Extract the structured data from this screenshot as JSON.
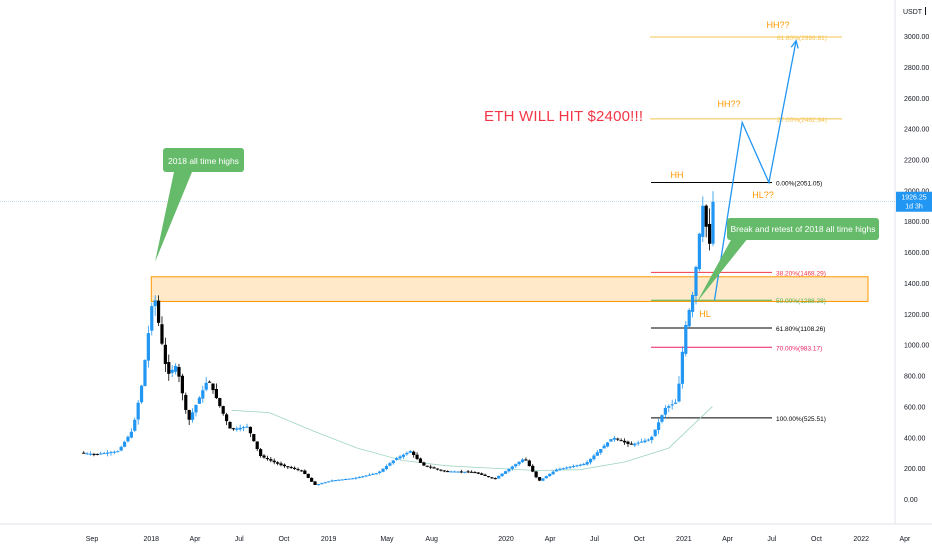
{
  "header": {
    "currency": "USDT",
    "gear_icon": "settings-dropdown-icon"
  },
  "price_badge": {
    "price": "1926.25",
    "countdown": "1d 3h",
    "color": "#2196f3"
  },
  "main_annotation": {
    "text": "ETH WILL HIT $2400!!!",
    "color": "#f23645"
  },
  "callouts": [
    {
      "text": "2018 all time highs",
      "color": "#66bb6a"
    },
    {
      "text": "Break and retest of 2018 all time highs",
      "color": "#66bb6a"
    }
  ],
  "structure_labels": [
    "HH",
    "HH??",
    "HL??",
    "HH??",
    "HL"
  ],
  "colors": {
    "up": "#2196f3",
    "down": "#000000",
    "zone": "#ffe0b2",
    "zone_border": "#ff9800",
    "projection": "#2196f3",
    "label": "#ff9800"
  },
  "chart_data": {
    "type": "candlestick",
    "y_axis_ticks": [
      0,
      200,
      400,
      600,
      800,
      1000,
      1200,
      1400,
      1600,
      1800,
      2000,
      2200,
      2400,
      2600,
      2800,
      3000
    ],
    "y_axis_tick_labels": [
      "0.00",
      "200.00",
      "400.00",
      "600.00",
      "800.00",
      "1000.00",
      "1200.00",
      "1400.00",
      "1600.00",
      "1800.00",
      "2000.00",
      "2200.00",
      "2400.00",
      "2600.00",
      "2800.00",
      "3000.00"
    ],
    "x_axis_ticks": [
      {
        "label": "Sep",
        "date": "2017-09-01"
      },
      {
        "label": "2018",
        "date": "2018-01-01"
      },
      {
        "label": "Apr",
        "date": "2018-04-01"
      },
      {
        "label": "Jul",
        "date": "2018-07-01"
      },
      {
        "label": "Oct",
        "date": "2018-10-01"
      },
      {
        "label": "2019",
        "date": "2019-01-01"
      },
      {
        "label": "May",
        "date": "2019-05-01"
      },
      {
        "label": "Aug",
        "date": "2019-08-01"
      },
      {
        "label": "2020",
        "date": "2020-01-01"
      },
      {
        "label": "Apr",
        "date": "2020-04-01"
      },
      {
        "label": "Jul",
        "date": "2020-07-01"
      },
      {
        "label": "Oct",
        "date": "2020-10-01"
      },
      {
        "label": "2021",
        "date": "2021-01-01"
      },
      {
        "label": "Apr",
        "date": "2021-04-01"
      },
      {
        "label": "Jul",
        "date": "2021-07-01"
      },
      {
        "label": "Oct",
        "date": "2021-10-01"
      },
      {
        "label": "2022",
        "date": "2022-01-01"
      },
      {
        "label": "Apr",
        "date": "2022-04-01"
      }
    ],
    "price_path": [
      {
        "date": "2017-08-15",
        "price": 300
      },
      {
        "date": "2017-09-15",
        "price": 290
      },
      {
        "date": "2017-11-01",
        "price": 310
      },
      {
        "date": "2017-12-01",
        "price": 450
      },
      {
        "date": "2017-12-20",
        "price": 750
      },
      {
        "date": "2018-01-13",
        "price": 1350
      },
      {
        "date": "2018-01-25",
        "price": 1100
      },
      {
        "date": "2018-02-10",
        "price": 800
      },
      {
        "date": "2018-03-01",
        "price": 870
      },
      {
        "date": "2018-03-25",
        "price": 500
      },
      {
        "date": "2018-05-05",
        "price": 780
      },
      {
        "date": "2018-06-01",
        "price": 580
      },
      {
        "date": "2018-06-20",
        "price": 450
      },
      {
        "date": "2018-07-25",
        "price": 470
      },
      {
        "date": "2018-08-20",
        "price": 280
      },
      {
        "date": "2018-10-01",
        "price": 220
      },
      {
        "date": "2018-11-15",
        "price": 180
      },
      {
        "date": "2018-12-10",
        "price": 90
      },
      {
        "date": "2019-01-15",
        "price": 120
      },
      {
        "date": "2019-03-01",
        "price": 135
      },
      {
        "date": "2019-04-20",
        "price": 170
      },
      {
        "date": "2019-05-25",
        "price": 260
      },
      {
        "date": "2019-06-25",
        "price": 310
      },
      {
        "date": "2019-07-20",
        "price": 220
      },
      {
        "date": "2019-09-01",
        "price": 180
      },
      {
        "date": "2019-11-01",
        "price": 175
      },
      {
        "date": "2019-12-15",
        "price": 130
      },
      {
        "date": "2020-02-15",
        "price": 265
      },
      {
        "date": "2020-03-15",
        "price": 115
      },
      {
        "date": "2020-04-20",
        "price": 190
      },
      {
        "date": "2020-06-20",
        "price": 230
      },
      {
        "date": "2020-08-15",
        "price": 400
      },
      {
        "date": "2020-09-20",
        "price": 350
      },
      {
        "date": "2020-11-01",
        "price": 390
      },
      {
        "date": "2020-12-01",
        "price": 590
      },
      {
        "date": "2020-12-25",
        "price": 630
      },
      {
        "date": "2021-01-10",
        "price": 1100
      },
      {
        "date": "2021-01-28",
        "price": 1350
      },
      {
        "date": "2021-02-10",
        "price": 1750
      },
      {
        "date": "2021-02-20",
        "price": 2000
      },
      {
        "date": "2021-02-27",
        "price": 1450
      },
      {
        "date": "2021-03-06",
        "price": 1926
      }
    ],
    "resistance_zone": {
      "low": 1280,
      "high": 1440,
      "start": "2018-01-01",
      "end": "2022-01-15"
    },
    "fib_levels": [
      {
        "label": "0.00%(2051.05)",
        "value": 2051.05,
        "color": "#000000"
      },
      {
        "label": "38.20%(1468.29)",
        "value": 1468.29,
        "color": "#f23645"
      },
      {
        "label": "50.00%(1288.28)",
        "value": 1288.28,
        "color": "#4caf50"
      },
      {
        "label": "61.80%(1108.26)",
        "value": 1108.26,
        "color": "#000000"
      },
      {
        "label": "70.00%(983.17)",
        "value": 983.17,
        "color": "#e91e63"
      },
      {
        "label": "100.00%(525.51)",
        "value": 525.51,
        "color": "#000000"
      }
    ],
    "fib_extensions": [
      {
        "label": "27.00%(2462.94)",
        "value": 2462.94,
        "color": "#f5c451"
      },
      {
        "label": "61.80%(2993.81)",
        "value": 2993.81,
        "color": "#f5c451"
      }
    ],
    "projection_path": [
      {
        "date": "2021-03-05",
        "price": 1288
      },
      {
        "date": "2021-05-01",
        "price": 2440
      },
      {
        "date": "2021-06-25",
        "price": 2051
      },
      {
        "date": "2021-08-20",
        "price": 2970
      }
    ],
    "last_price": 1926.25
  }
}
